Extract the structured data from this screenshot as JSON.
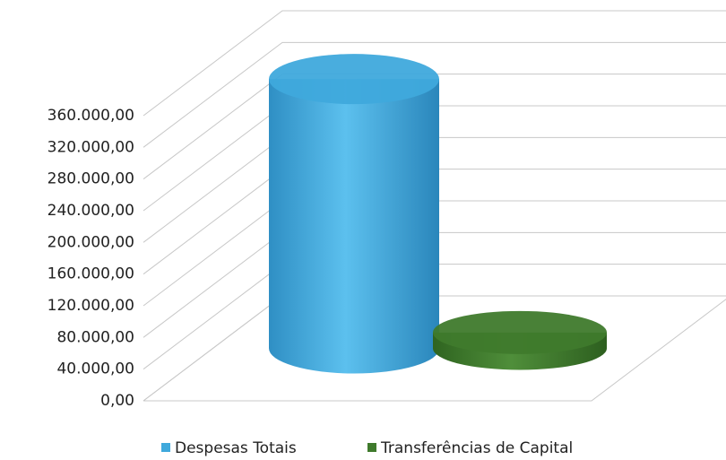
{
  "chart_data": {
    "type": "cylinder",
    "categories": [
      null
    ],
    "series": [
      {
        "name": "Despesas Totais",
        "color": "#3fa9dc",
        "values": [
          340000
        ]
      },
      {
        "name": "Transferências de Capital",
        "color": "#3f7a2c",
        "values": [
          20000
        ]
      }
    ],
    "ylim": [
      0,
      360000
    ],
    "yticks": [
      {
        "value": 0,
        "label": "0,00"
      },
      {
        "value": 40000,
        "label": "40.000,00"
      },
      {
        "value": 80000,
        "label": "80.000,00"
      },
      {
        "value": 120000,
        "label": "120.000,00"
      },
      {
        "value": 160000,
        "label": "160.000,00"
      },
      {
        "value": 200000,
        "label": "200.000,00"
      },
      {
        "value": 240000,
        "label": "240.000,00"
      },
      {
        "value": 280000,
        "label": "280.000,00"
      },
      {
        "value": 320000,
        "label": "320.000,00"
      },
      {
        "value": 360000,
        "label": "360.000,00"
      }
    ],
    "grid": true,
    "legend": "bottom"
  }
}
